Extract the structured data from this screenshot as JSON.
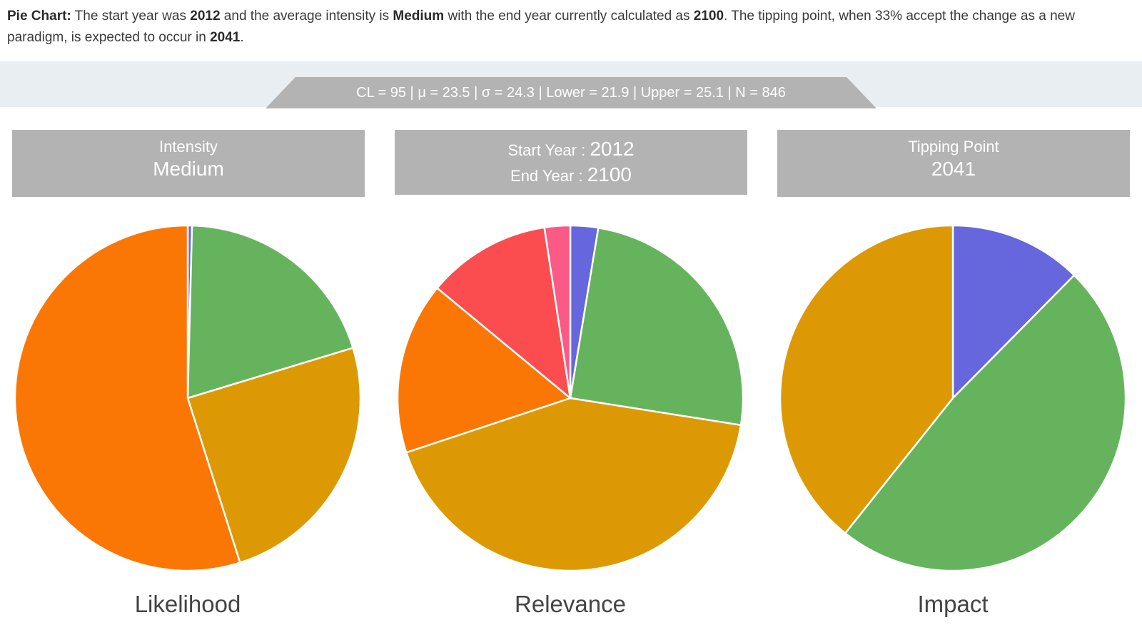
{
  "intro": {
    "prefix": "Pie Chart:",
    "t1": " The start year was ",
    "start_year": "2012",
    "t2": " and the average intensity is ",
    "intensity": "Medium",
    "t3": " with the end year currently calculated as ",
    "end_year": "2100",
    "t4": ". The tipping point, when 33% accept the change as a new paradigm, is expected to occur in ",
    "tipping_year": "2041",
    "t5": "."
  },
  "stats": "CL = 95 | μ = 23.5 | σ = 24.3 | Lower = 21.9 | Upper = 25.1 | N = 846",
  "cards": {
    "intensity": {
      "label": "Intensity",
      "value": "Medium"
    },
    "years": {
      "start_label": "Start Year :",
      "start_value": "2012",
      "end_label": "End Year :",
      "end_value": "2100"
    },
    "tipping": {
      "label": "Tipping Point",
      "value": "2041"
    }
  },
  "colors": {
    "blue": "#6666dd",
    "green": "#66b35e",
    "gold": "#dd9904",
    "orange": "#fb7705",
    "red": "#fb4d4f",
    "pink": "#fb5a86"
  },
  "chart_data": [
    {
      "type": "pie",
      "title": "Likelihood",
      "slices": [
        {
          "color": "#6666dd",
          "value": 0.4
        },
        {
          "color": "#66b35e",
          "value": 19.9
        },
        {
          "color": "#dd9904",
          "value": 24.8
        },
        {
          "color": "#fb7705",
          "value": 54.9
        }
      ]
    },
    {
      "type": "pie",
      "title": "Relevance",
      "slices": [
        {
          "color": "#6666dd",
          "value": 2.6
        },
        {
          "color": "#66b35e",
          "value": 24.9
        },
        {
          "color": "#dd9904",
          "value": 42.4
        },
        {
          "color": "#fb7705",
          "value": 16.1
        },
        {
          "color": "#fb4d4f",
          "value": 11.6
        },
        {
          "color": "#fb5a86",
          "value": 2.4
        }
      ]
    },
    {
      "type": "pie",
      "title": "Impact",
      "slices": [
        {
          "color": "#6666dd",
          "value": 12.4
        },
        {
          "color": "#66b35e",
          "value": 48.3
        },
        {
          "color": "#dd9904",
          "value": 39.3
        }
      ]
    }
  ]
}
